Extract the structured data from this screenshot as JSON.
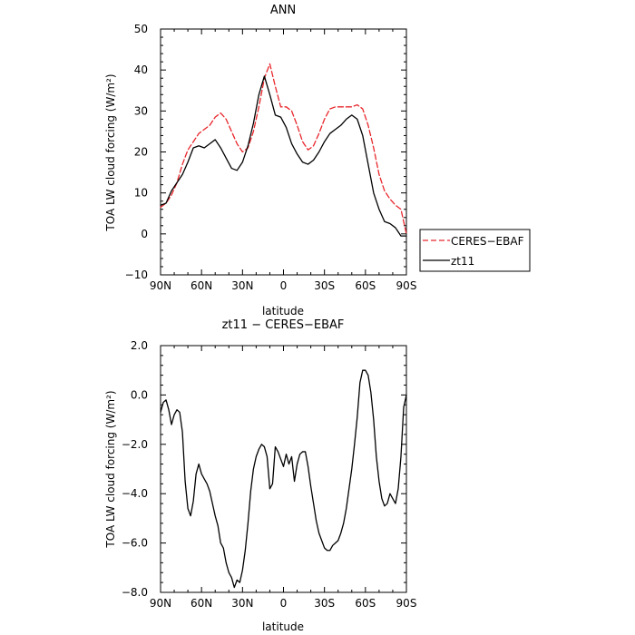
{
  "chart_data": [
    {
      "type": "line",
      "title": "ANN",
      "xlabel": "latitude",
      "ylabel": "TOA LW cloud forcing (W/m²)",
      "xlim": [
        90,
        -90
      ],
      "ylim": [
        -10,
        50
      ],
      "x_ticks": [
        {
          "value": 90,
          "label": "90N"
        },
        {
          "value": 60,
          "label": "60N"
        },
        {
          "value": 30,
          "label": "30N"
        },
        {
          "value": 0,
          "label": "0"
        },
        {
          "value": -30,
          "label": "30S"
        },
        {
          "value": -60,
          "label": "60S"
        },
        {
          "value": -90,
          "label": "90S"
        }
      ],
      "y_ticks": [
        {
          "value": -10,
          "label": "−10"
        },
        {
          "value": 0,
          "label": "0"
        },
        {
          "value": 10,
          "label": "10"
        },
        {
          "value": 20,
          "label": "20"
        },
        {
          "value": 30,
          "label": "30"
        },
        {
          "value": 40,
          "label": "40"
        },
        {
          "value": 50,
          "label": "50"
        }
      ],
      "legend": {
        "position": "right",
        "entries": [
          "CERES−EBAF",
          "zt11"
        ]
      },
      "series": [
        {
          "name": "CERES−EBAF",
          "color": "#e8262b",
          "dash": "dashed",
          "x": [
            90,
            86,
            82,
            78,
            74,
            70,
            66,
            62,
            58,
            54,
            50,
            46,
            42,
            38,
            34,
            30,
            26,
            22,
            18,
            14,
            10,
            6,
            2,
            -2,
            -6,
            -10,
            -14,
            -18,
            -22,
            -26,
            -30,
            -34,
            -38,
            -42,
            -46,
            -50,
            -54,
            -58,
            -62,
            -66,
            -70,
            -74,
            -78,
            -82,
            -86,
            -90
          ],
          "y": [
            6.5,
            7.5,
            9.5,
            12.5,
            17,
            20.5,
            22.5,
            24.5,
            25.5,
            26.5,
            28.5,
            29.5,
            28,
            25,
            22,
            20,
            21,
            25,
            31,
            38,
            41.5,
            36,
            31,
            31,
            30,
            26.5,
            22.5,
            20.5,
            21.5,
            24.5,
            28,
            30.5,
            31,
            31,
            31,
            31,
            31.5,
            30.5,
            26.5,
            21,
            14.5,
            10.5,
            8.5,
            7,
            6,
            0
          ]
        },
        {
          "name": "zt11",
          "color": "#000000",
          "dash": "solid",
          "x": [
            90,
            86,
            82,
            78,
            74,
            70,
            66,
            62,
            58,
            54,
            50,
            46,
            42,
            38,
            34,
            30,
            26,
            22,
            18,
            14,
            10,
            6,
            2,
            -2,
            -6,
            -10,
            -14,
            -18,
            -22,
            -26,
            -30,
            -34,
            -38,
            -42,
            -46,
            -50,
            -54,
            -58,
            -62,
            -66,
            -70,
            -74,
            -78,
            -82,
            -86,
            -90
          ],
          "y": [
            7,
            7.5,
            10.5,
            12.5,
            14.5,
            17.5,
            21,
            21.5,
            21,
            22,
            23,
            21,
            18.5,
            16,
            15.5,
            17.5,
            21.5,
            27,
            34,
            38.5,
            34,
            29,
            28.5,
            26,
            22,
            19.5,
            17.5,
            17,
            18,
            20,
            22.5,
            24.5,
            25.5,
            26.5,
            28,
            29,
            28,
            24,
            17,
            10,
            6,
            3,
            2.5,
            1.5,
            -0.5,
            -0.5
          ]
        }
      ]
    },
    {
      "type": "line",
      "title": "zt11 − CERES−EBAF",
      "xlabel": "latitude",
      "ylabel": "TOA LW cloud forcing (W/m²)",
      "xlim": [
        90,
        -90
      ],
      "ylim": [
        -8,
        2
      ],
      "x_ticks": [
        {
          "value": 90,
          "label": "90N"
        },
        {
          "value": 60,
          "label": "60N"
        },
        {
          "value": 30,
          "label": "30N"
        },
        {
          "value": 0,
          "label": "0"
        },
        {
          "value": -30,
          "label": "30S"
        },
        {
          "value": -60,
          "label": "60S"
        },
        {
          "value": -90,
          "label": "90S"
        }
      ],
      "y_ticks": [
        {
          "value": -8,
          "label": "−8.0"
        },
        {
          "value": -6,
          "label": "−6.0"
        },
        {
          "value": -4,
          "label": "−4.0"
        },
        {
          "value": -2,
          "label": "−2.0"
        },
        {
          "value": 0,
          "label": "0.0"
        },
        {
          "value": 2,
          "label": "2.0"
        }
      ],
      "series": [
        {
          "name": "",
          "color": "#000000",
          "dash": "solid",
          "x": [
            90,
            88,
            86,
            84,
            82,
            80,
            78,
            76,
            74,
            72,
            70,
            68,
            66,
            64,
            62,
            60,
            58,
            56,
            54,
            52,
            50,
            48,
            46,
            44,
            42,
            40,
            38,
            36,
            34,
            32,
            30,
            28,
            26,
            24,
            22,
            20,
            18,
            16,
            14,
            12,
            10,
            8,
            6,
            4,
            2,
            0,
            -2,
            -4,
            -6,
            -8,
            -10,
            -12,
            -14,
            -16,
            -18,
            -20,
            -22,
            -24,
            -26,
            -28,
            -30,
            -32,
            -34,
            -36,
            -38,
            -40,
            -42,
            -44,
            -46,
            -48,
            -50,
            -52,
            -54,
            -56,
            -58,
            -60,
            -62,
            -64,
            -66,
            -68,
            -70,
            -72,
            -74,
            -76,
            -78,
            -80,
            -82,
            -84,
            -86,
            -88,
            -90
          ],
          "y": [
            -0.7,
            -0.3,
            -0.2,
            -0.6,
            -1.2,
            -0.8,
            -0.6,
            -0.7,
            -1.5,
            -3.5,
            -4.6,
            -4.9,
            -4.3,
            -3.2,
            -2.8,
            -3.2,
            -3.4,
            -3.6,
            -3.9,
            -4.4,
            -4.9,
            -5.3,
            -6.0,
            -6.2,
            -6.8,
            -7.2,
            -7.4,
            -7.8,
            -7.5,
            -7.6,
            -7.1,
            -6.3,
            -5.2,
            -3.9,
            -3.0,
            -2.5,
            -2.2,
            -2.0,
            -2.1,
            -2.5,
            -3.8,
            -3.6,
            -2.1,
            -2.3,
            -2.6,
            -2.9,
            -2.4,
            -2.8,
            -2.5,
            -3.5,
            -2.8,
            -2.4,
            -2.3,
            -2.3,
            -2.9,
            -3.7,
            -4.4,
            -5.1,
            -5.6,
            -5.9,
            -6.2,
            -6.3,
            -6.3,
            -6.1,
            -6.0,
            -5.9,
            -5.6,
            -5.2,
            -4.6,
            -3.8,
            -3.0,
            -2.0,
            -0.9,
            0.5,
            1.0,
            1.0,
            0.8,
            0.1,
            -1.0,
            -2.5,
            -3.5,
            -4.2,
            -4.5,
            -4.4,
            -4.0,
            -4.2,
            -4.4,
            -3.8,
            -2.5,
            -0.5,
            0.0
          ]
        }
      ]
    }
  ]
}
